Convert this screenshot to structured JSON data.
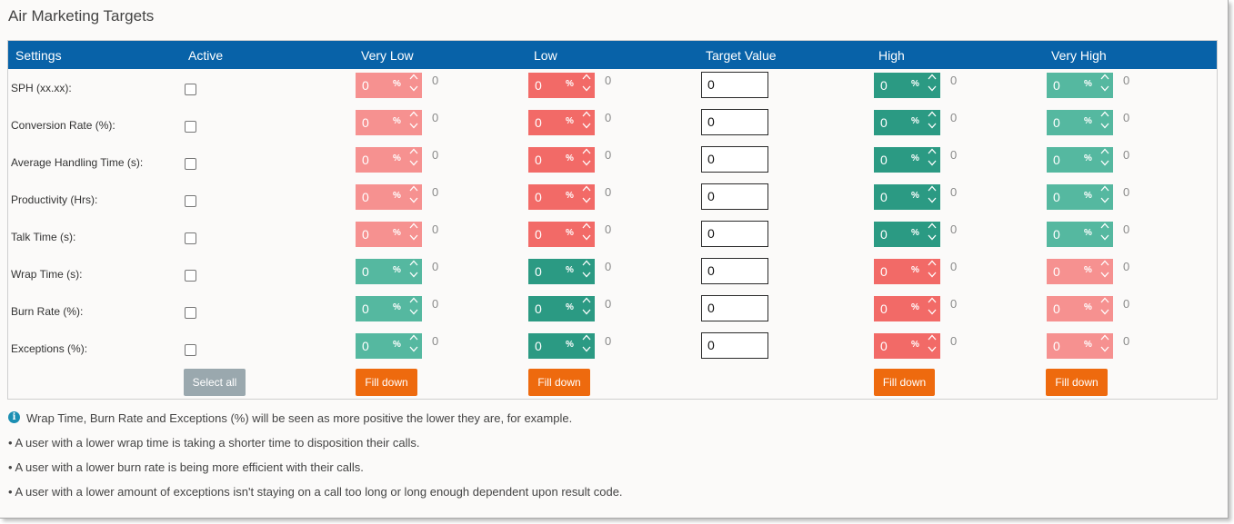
{
  "title": "Air Marketing Targets",
  "headers": {
    "settings": "Settings",
    "active": "Active",
    "very_low": "Very Low",
    "low": "Low",
    "target_value": "Target Value",
    "high": "High",
    "very_high": "Very High"
  },
  "percent_symbol": "%",
  "colors": {
    "header_blue": "#0862a8",
    "light_red": "#f69190",
    "red": "#f26a67",
    "teal": "#2b9a83",
    "light_teal": "#55b8a0",
    "button_orange": "#ee6a0e",
    "button_grey": "#9aa8ae"
  },
  "rows": [
    {
      "label": "SPH (xx.xx):",
      "very_low": "0",
      "very_low_side": "0",
      "low": "0",
      "low_side": "0",
      "target": "0",
      "high": "0",
      "high_side": "0",
      "very_high": "0",
      "very_high_side": "0"
    },
    {
      "label": "Conversion Rate (%):",
      "very_low": "0",
      "very_low_side": "0",
      "low": "0",
      "low_side": "0",
      "target": "0",
      "high": "0",
      "high_side": "0",
      "very_high": "0",
      "very_high_side": "0"
    },
    {
      "label": "Average Handling Time (s):",
      "very_low": "0",
      "very_low_side": "0",
      "low": "0",
      "low_side": "0",
      "target": "0",
      "high": "0",
      "high_side": "0",
      "very_high": "0",
      "very_high_side": "0"
    },
    {
      "label": "Productivity (Hrs):",
      "very_low": "0",
      "very_low_side": "0",
      "low": "0",
      "low_side": "0",
      "target": "0",
      "high": "0",
      "high_side": "0",
      "very_high": "0",
      "very_high_side": "0"
    },
    {
      "label": "Talk Time (s):",
      "very_low": "0",
      "very_low_side": "0",
      "low": "0",
      "low_side": "0",
      "target": "0",
      "high": "0",
      "high_side": "0",
      "very_high": "0",
      "very_high_side": "0"
    },
    {
      "label": "Wrap Time (s):",
      "very_low": "0",
      "very_low_side": "0",
      "low": "0",
      "low_side": "0",
      "target": "0",
      "high": "0",
      "high_side": "0",
      "very_high": "0",
      "very_high_side": "0"
    },
    {
      "label": "Burn Rate (%):",
      "very_low": "0",
      "very_low_side": "0",
      "low": "0",
      "low_side": "0",
      "target": "0",
      "high": "0",
      "high_side": "0",
      "very_high": "0",
      "very_high_side": "0"
    },
    {
      "label": "Exceptions (%):",
      "very_low": "0",
      "very_low_side": "0",
      "low": "0",
      "low_side": "0",
      "target": "0",
      "high": "0",
      "high_side": "0",
      "very_high": "0",
      "very_high_side": "0"
    }
  ],
  "buttons": {
    "select_all": "Select all",
    "fill_down": "Fill down"
  },
  "notes": {
    "info": "Wrap Time, Burn Rate and Exceptions (%) will be seen as more positive the lower they are, for example.",
    "bullet1": "• A user with a lower wrap time is taking a shorter time to disposition their calls.",
    "bullet2": "• A user with a lower burn rate is being more efficient with their calls.",
    "bullet3": "• A user with a lower amount of exceptions isn't staying on a call too long or long enough dependent upon result code."
  }
}
